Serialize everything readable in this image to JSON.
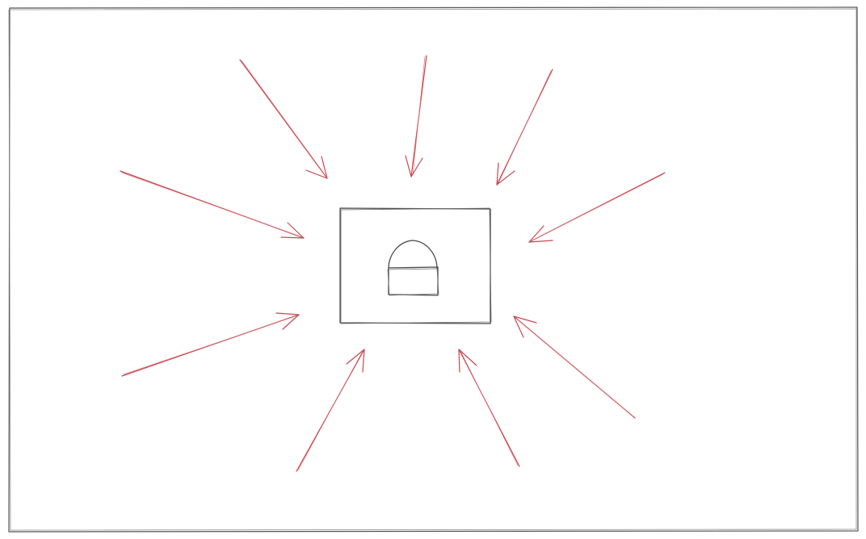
{
  "diagram": {
    "type": "sketch",
    "center_icon": "lock-icon",
    "arrows": [
      {
        "name": "arrow-top-left"
      },
      {
        "name": "arrow-top"
      },
      {
        "name": "arrow-top-right"
      },
      {
        "name": "arrow-left-upper"
      },
      {
        "name": "arrow-right-upper"
      },
      {
        "name": "arrow-left-lower"
      },
      {
        "name": "arrow-bottom-left"
      },
      {
        "name": "arrow-bottom-right"
      },
      {
        "name": "arrow-right-lower"
      }
    ],
    "colors": {
      "background": "#ffffff",
      "frame": "#555555",
      "box": "#4a4a4a",
      "arrow": "#c8474f"
    }
  }
}
